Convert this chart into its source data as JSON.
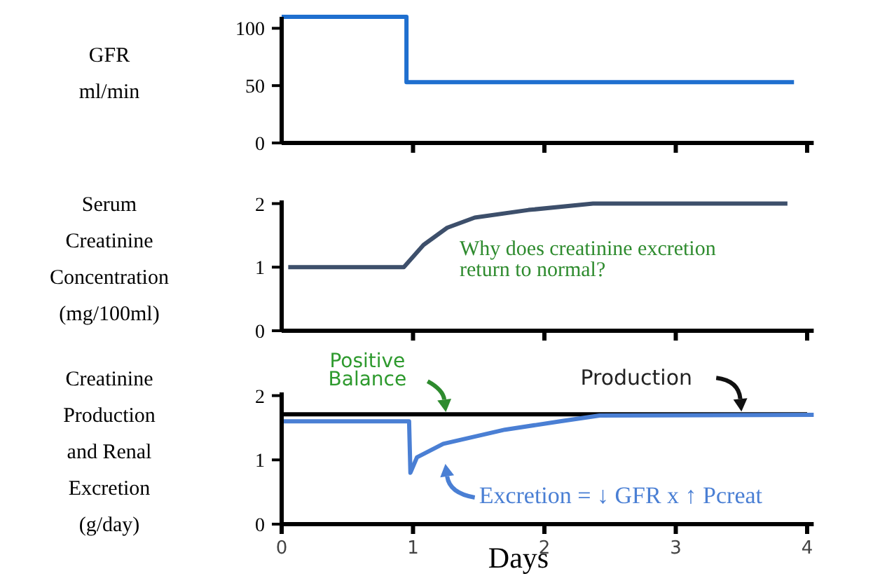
{
  "chart_data": [
    {
      "type": "step",
      "ylabel": "GFR\nml/min",
      "xlim": [
        0,
        4.05
      ],
      "xticks": [
        {
          "value": 1,
          "label": null
        },
        {
          "value": 2,
          "label": null
        },
        {
          "value": 3,
          "label": null
        },
        {
          "value": 4,
          "label": null
        }
      ],
      "ylim": [
        0,
        110
      ],
      "yticks": [
        0,
        50,
        100
      ],
      "tick_labels": "y",
      "x": [
        0,
        0.95,
        3.9
      ],
      "values": [
        110,
        53,
        53
      ],
      "color": "#1f6fcf"
    },
    {
      "type": "line",
      "ylabel": "Serum\nCreatinine\nConcentration\n(mg/100ml)",
      "xlim": [
        0,
        4.05
      ],
      "xticks": [
        {
          "value": 1,
          "label": null
        },
        {
          "value": 2,
          "label": null
        },
        {
          "value": 3,
          "label": null
        },
        {
          "value": 4,
          "label": null
        }
      ],
      "ylim": [
        0,
        2.05
      ],
      "yticks": [
        0,
        1,
        2
      ],
      "tick_labels": "y",
      "x": [
        0.05,
        0.93,
        1.08,
        1.26,
        1.47,
        1.88,
        2.37,
        3.85
      ],
      "values": [
        1,
        1,
        1.35,
        1.62,
        1.78,
        1.9,
        2,
        2
      ],
      "color": "#3d4f6b",
      "annotations": [
        "Why does creatinine excretion return to normal?"
      ]
    },
    {
      "type": "line",
      "ylabel": "Creatinine\nProduction\nand Renal\nExcretion\n(g/day)",
      "xlabel": "Days",
      "xlim": [
        0,
        4.05
      ],
      "xticks": [
        0,
        1,
        2,
        3,
        4
      ],
      "ylim": [
        0,
        2.05
      ],
      "yticks": [
        0,
        1,
        2
      ],
      "series": [
        {
          "color": "#000000",
          "x": [
            0,
            4
          ],
          "values": [
            1.71,
            1.71
          ]
        },
        {
          "color": "#4a7fd4",
          "x": [
            0,
            0.97,
            0.98,
            1.03,
            1.23,
            1.7,
            2.12,
            2.42,
            4.05
          ],
          "values": [
            1.6,
            1.6,
            0.8,
            1.04,
            1.25,
            1.47,
            1.6,
            1.69,
            1.7
          ]
        }
      ],
      "annotations": [
        {
          "text": "Positive Balance",
          "x": 1.25,
          "y": 1.7
        },
        {
          "text": "Production",
          "x": 3.5,
          "y": 1.71
        },
        {
          "text": "Excretion = ↓ GFR x ↑ Pcreat",
          "x": 1.15,
          "y": 1.2
        }
      ]
    }
  ]
}
